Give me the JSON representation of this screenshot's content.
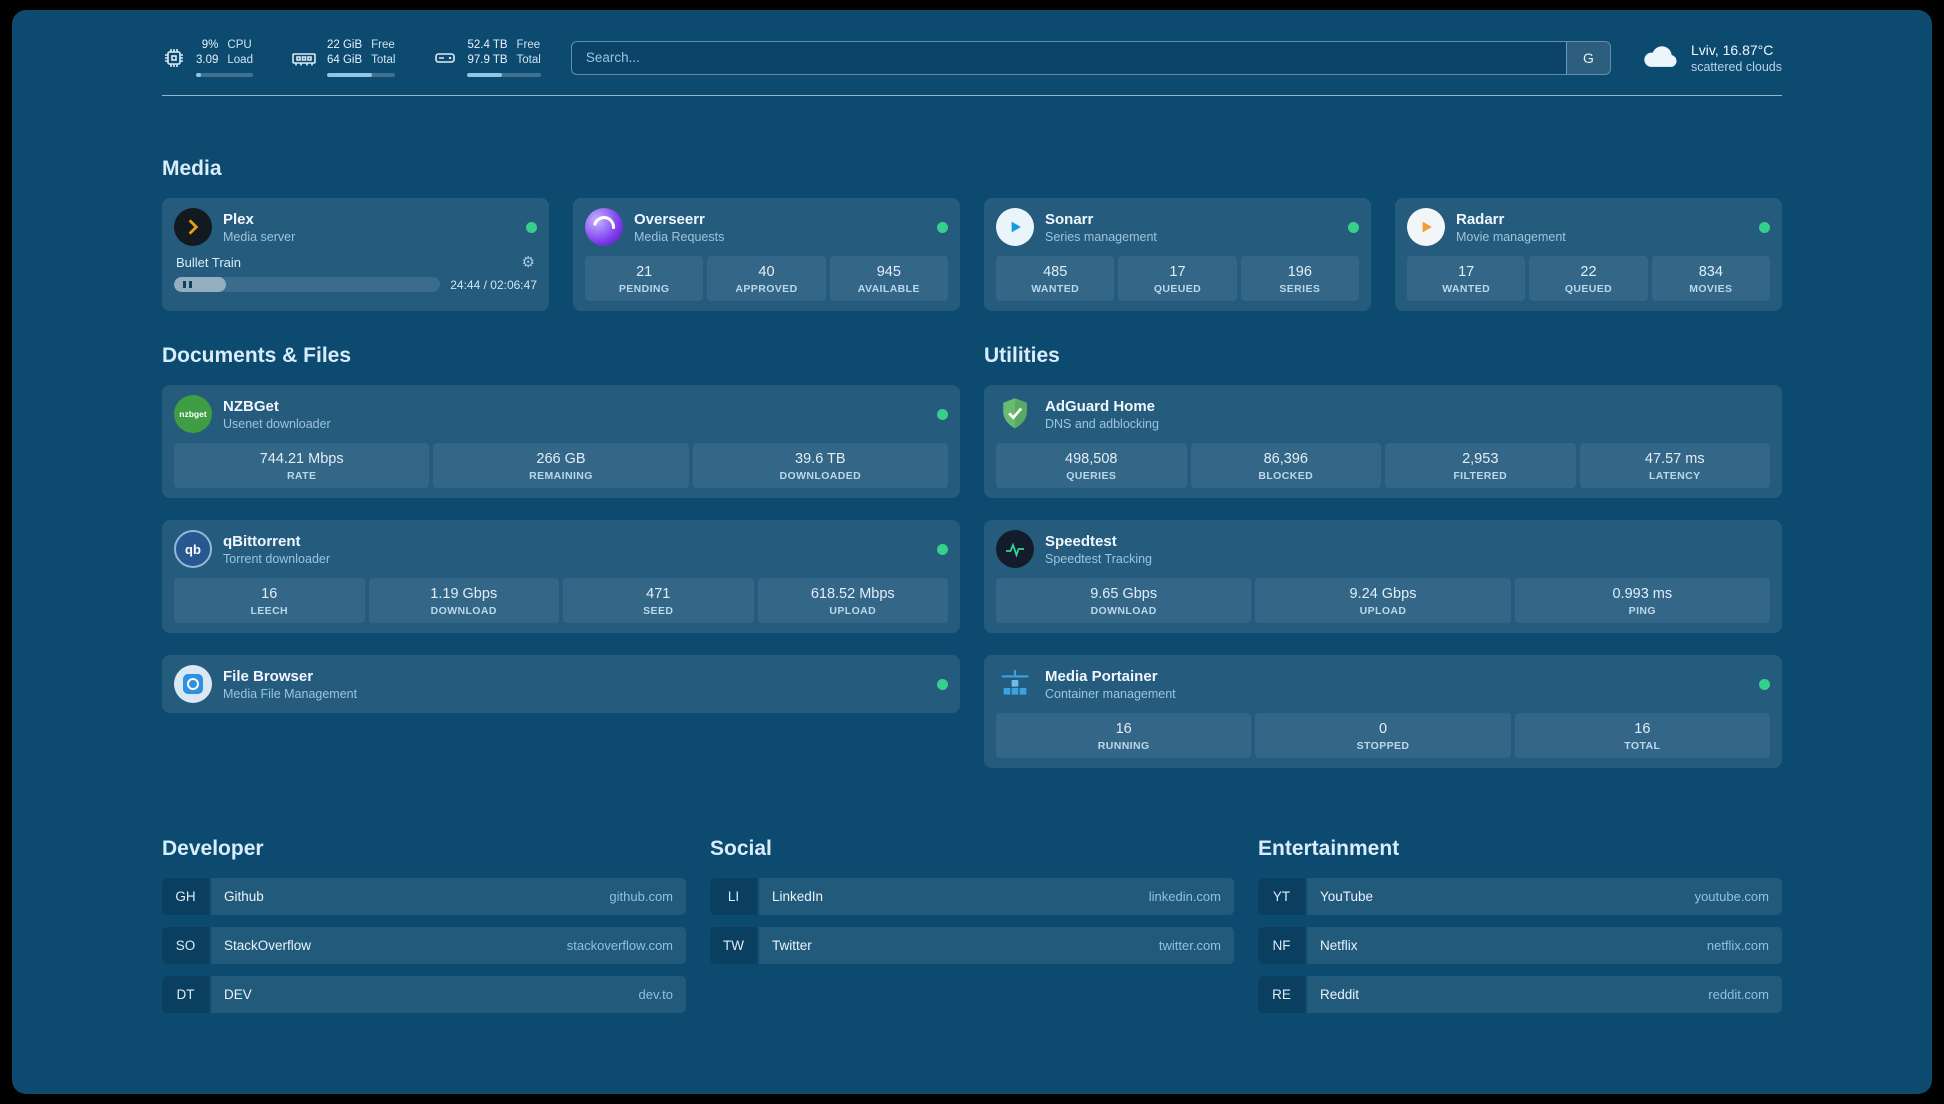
{
  "theme": {
    "background": "#0d4a70",
    "card": "rgba(255,255,255,0.10)",
    "status_green": "#35d08a",
    "plex_orange": "#e5a00d",
    "sonarr_blue": "#169bd7",
    "radarr_amber": "#f0a02e",
    "nzbget_green": "#3f9e43",
    "adguard_green": "#68bc71",
    "speedtest_pulse": "#34d399",
    "portainer_blue": "#3aa2e0"
  },
  "icons": {
    "gear": "⚙"
  },
  "header": {
    "cpu": {
      "v1": "9%",
      "v2": "3.09",
      "l1": "CPU",
      "l2": "Load",
      "pct": 9
    },
    "memory": {
      "v1": "22 GiB",
      "v2": "64 GiB",
      "l1": "Free",
      "l2": "Total",
      "pct": 66
    },
    "disk": {
      "v1": "52.4 TB",
      "v2": "97.9 TB",
      "l1": "Free",
      "l2": "Total",
      "pct": 47
    },
    "search": {
      "placeholder": "Search...",
      "provider": "G"
    },
    "weather": {
      "location": "Lviv, 16.87°C",
      "condition": "scattered clouds"
    }
  },
  "sections": {
    "media": "Media",
    "documents": "Documents & Files",
    "utilities": "Utilities"
  },
  "services": {
    "plex": {
      "name": "Plex",
      "desc": "Media server",
      "now_playing": "Bullet Train",
      "time": "24:44 / 02:06:47",
      "progress_pct": 19.5
    },
    "overseerr": {
      "name": "Overseerr",
      "desc": "Media Requests",
      "stats": [
        {
          "value": "21",
          "label": "PENDING"
        },
        {
          "value": "40",
          "label": "APPROVED"
        },
        {
          "value": "945",
          "label": "AVAILABLE"
        }
      ]
    },
    "sonarr": {
      "name": "Sonarr",
      "desc": "Series management",
      "stats": [
        {
          "value": "485",
          "label": "WANTED"
        },
        {
          "value": "17",
          "label": "QUEUED"
        },
        {
          "value": "196",
          "label": "SERIES"
        }
      ]
    },
    "radarr": {
      "name": "Radarr",
      "desc": "Movie management",
      "stats": [
        {
          "value": "17",
          "label": "WANTED"
        },
        {
          "value": "22",
          "label": "QUEUED"
        },
        {
          "value": "834",
          "label": "MOVIES"
        }
      ]
    },
    "nzbget": {
      "name": "NZBGet",
      "desc": "Usenet downloader",
      "icon_text": "nzbget",
      "stats": [
        {
          "value": "744.21 Mbps",
          "label": "RATE"
        },
        {
          "value": "266 GB",
          "label": "REMAINING"
        },
        {
          "value": "39.6 TB",
          "label": "DOWNLOADED"
        }
      ]
    },
    "qbittorrent": {
      "name": "qBittorrent",
      "desc": "Torrent downloader",
      "icon_text": "qb",
      "stats": [
        {
          "value": "16",
          "label": "LEECH"
        },
        {
          "value": "1.19 Gbps",
          "label": "DOWNLOAD"
        },
        {
          "value": "471",
          "label": "SEED"
        },
        {
          "value": "618.52 Mbps",
          "label": "UPLOAD"
        }
      ]
    },
    "filebrowser": {
      "name": "File Browser",
      "desc": "Media File Management"
    },
    "adguard": {
      "name": "AdGuard Home",
      "desc": "DNS and adblocking",
      "stats": [
        {
          "value": "498,508",
          "label": "QUERIES"
        },
        {
          "value": "86,396",
          "label": "BLOCKED"
        },
        {
          "value": "2,953",
          "label": "FILTERED"
        },
        {
          "value": "47.57 ms",
          "label": "LATENCY"
        }
      ]
    },
    "speedtest": {
      "name": "Speedtest",
      "desc": "Speedtest Tracking",
      "stats": [
        {
          "value": "9.65 Gbps",
          "label": "DOWNLOAD"
        },
        {
          "value": "9.24 Gbps",
          "label": "UPLOAD"
        },
        {
          "value": "0.993 ms",
          "label": "PING"
        }
      ]
    },
    "portainer": {
      "name": "Media Portainer",
      "desc": "Container management",
      "stats": [
        {
          "value": "16",
          "label": "RUNNING"
        },
        {
          "value": "0",
          "label": "STOPPED"
        },
        {
          "value": "16",
          "label": "TOTAL"
        }
      ]
    }
  },
  "bookmarks": {
    "developer": {
      "title": "Developer",
      "items": [
        {
          "abbr": "GH",
          "name": "Github",
          "domain": "github.com"
        },
        {
          "abbr": "SO",
          "name": "StackOverflow",
          "domain": "stackoverflow.com"
        },
        {
          "abbr": "DT",
          "name": "DEV",
          "domain": "dev.to"
        }
      ]
    },
    "social": {
      "title": "Social",
      "items": [
        {
          "abbr": "LI",
          "name": "LinkedIn",
          "domain": "linkedin.com"
        },
        {
          "abbr": "TW",
          "name": "Twitter",
          "domain": "twitter.com"
        }
      ]
    },
    "entertainment": {
      "title": "Entertainment",
      "items": [
        {
          "abbr": "YT",
          "name": "YouTube",
          "domain": "youtube.com"
        },
        {
          "abbr": "NF",
          "name": "Netflix",
          "domain": "netflix.com"
        },
        {
          "abbr": "RE",
          "name": "Reddit",
          "domain": "reddit.com"
        }
      ]
    }
  }
}
